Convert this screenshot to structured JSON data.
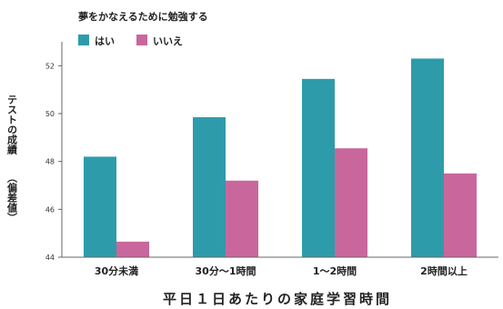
{
  "chart_data": {
    "type": "bar",
    "legend_title": "夢をかなえるために勉強する",
    "categories": [
      "30分未満",
      "30分〜1時間",
      "1〜2時間",
      "2時間以上"
    ],
    "series": [
      {
        "name": "はい",
        "color": "#2e9bab",
        "values": [
          48.2,
          49.85,
          51.45,
          52.3
        ]
      },
      {
        "name": "いいえ",
        "color": "#c9679c",
        "values": [
          44.65,
          47.2,
          48.55,
          47.5
        ]
      }
    ],
    "xlabel": "平日１日あたりの家庭学習時間",
    "ylabel_main": "テストの成績",
    "ylabel_sub": "（偏差値）",
    "ylim": [
      44,
      53
    ],
    "yticks": [
      44,
      46,
      48,
      50,
      52
    ],
    "grid": false,
    "legend_position": "top-left"
  }
}
